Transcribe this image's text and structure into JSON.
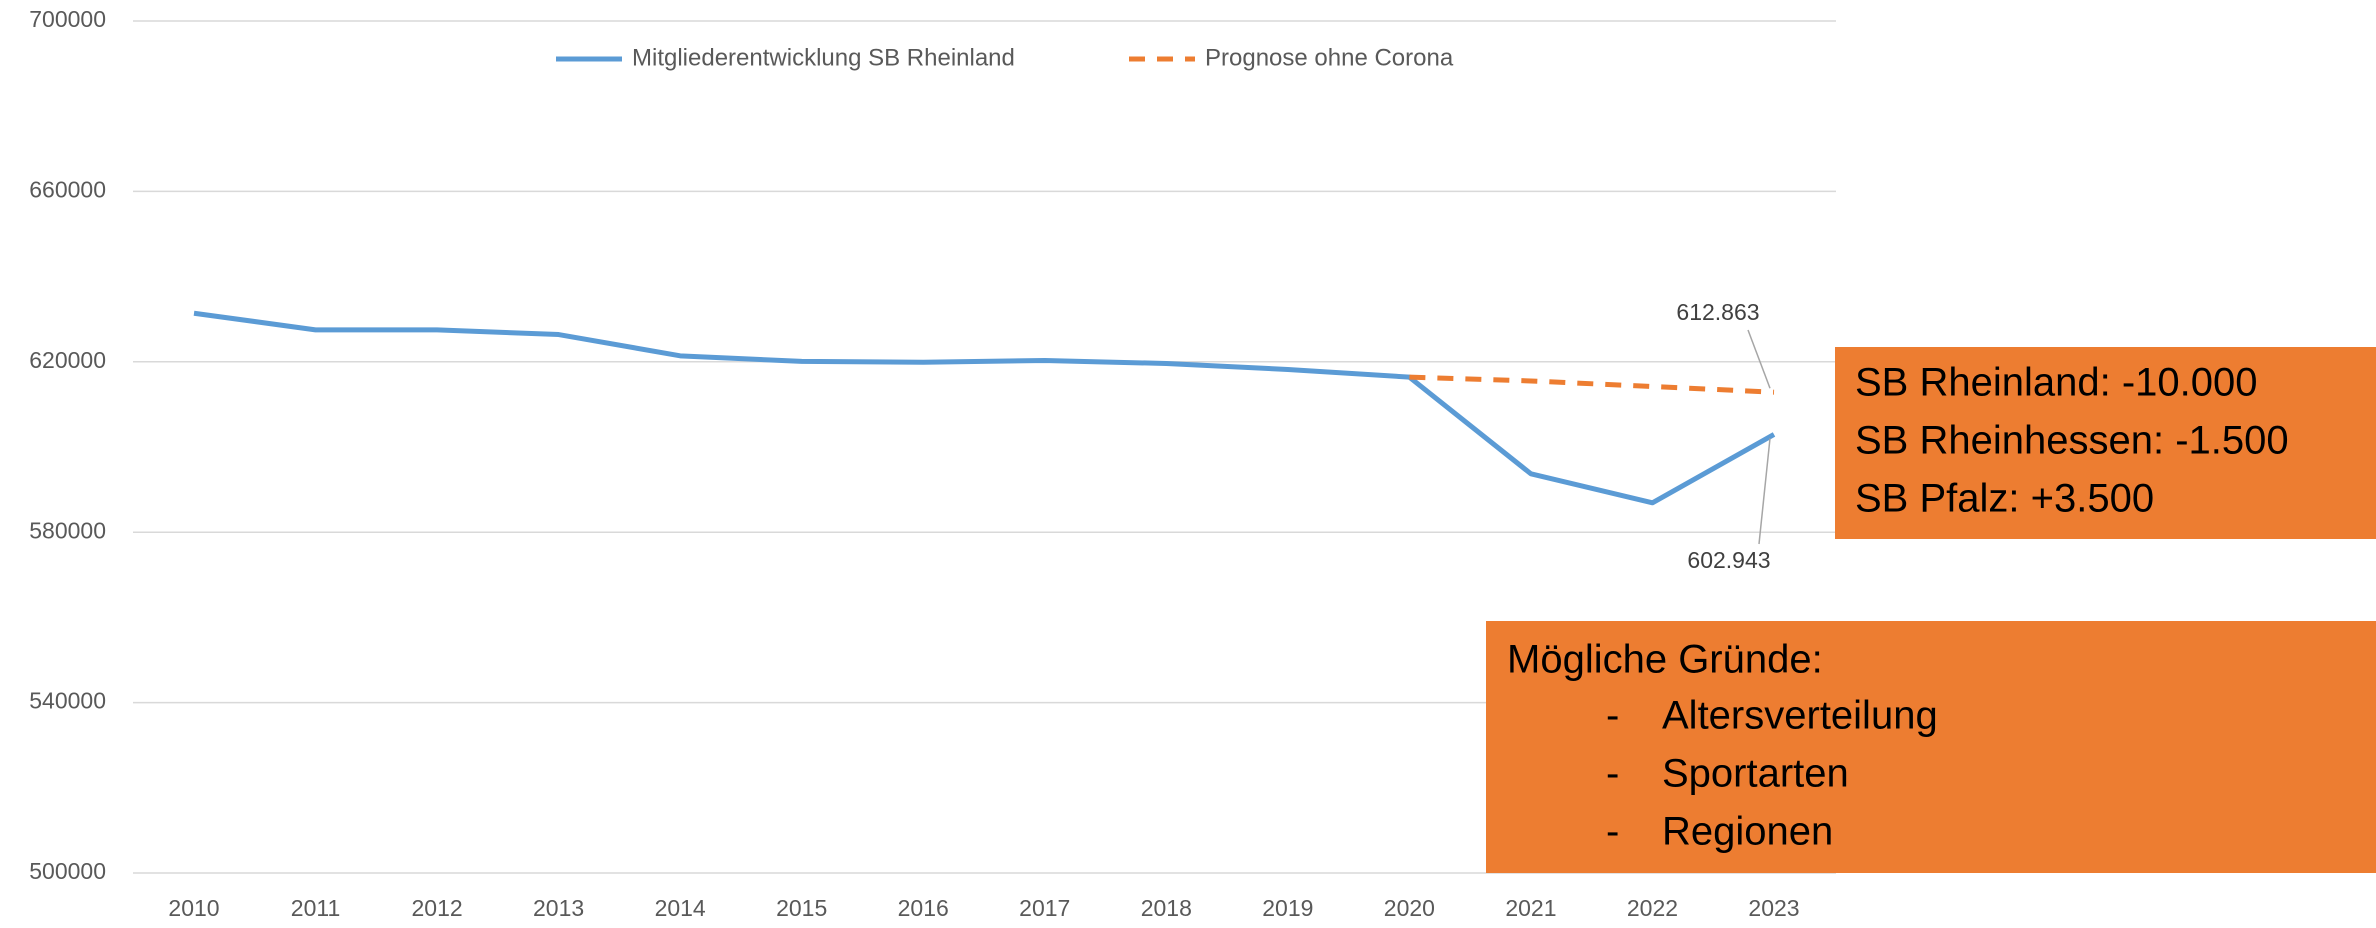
{
  "chart_data": {
    "type": "line",
    "categories": [
      "2010",
      "2011",
      "2012",
      "2013",
      "2014",
      "2015",
      "2016",
      "2017",
      "2018",
      "2019",
      "2020",
      "2021",
      "2022",
      "2023"
    ],
    "series": [
      {
        "name": "Mitgliederentwicklung SB Rheinland",
        "color": "#5b9bd5",
        "dash": false,
        "values": [
          631400,
          627500,
          627500,
          626400,
          621400,
          620100,
          619900,
          620300,
          619600,
          618200,
          616400,
          593700,
          586900,
          602943
        ],
        "value_labels": [
          null,
          null,
          null,
          null,
          null,
          null,
          null,
          null,
          null,
          null,
          null,
          null,
          null,
          "602.943"
        ]
      },
      {
        "name": "Prognose ohne Corona",
        "color": "#ed7d31",
        "dash": true,
        "values": [
          null,
          null,
          null,
          null,
          null,
          null,
          null,
          null,
          null,
          null,
          616400,
          615500,
          614200,
          612863
        ],
        "value_labels": [
          null,
          null,
          null,
          null,
          null,
          null,
          null,
          null,
          null,
          null,
          null,
          null,
          null,
          "612.863"
        ]
      }
    ],
    "ylim": [
      500000,
      700000
    ],
    "yticks": [
      500000,
      540000,
      580000,
      620000,
      660000,
      700000
    ],
    "grid": true,
    "legend": "top",
    "annotations": [
      {
        "color": "#ed7d31",
        "lines": [
          "SB Rheinland: -10.000",
          "SB Rheinhessen: -1.500",
          "SB Pfalz: +3.500"
        ]
      },
      {
        "color": "#ed7d31",
        "title": "Mögliche Gründe:",
        "items": [
          {
            "marker": "-",
            "text": "Altersverteilung"
          },
          {
            "marker": "-",
            "text": "Sportarten"
          },
          {
            "marker": "-",
            "text": "Regionen"
          }
        ]
      }
    ]
  }
}
